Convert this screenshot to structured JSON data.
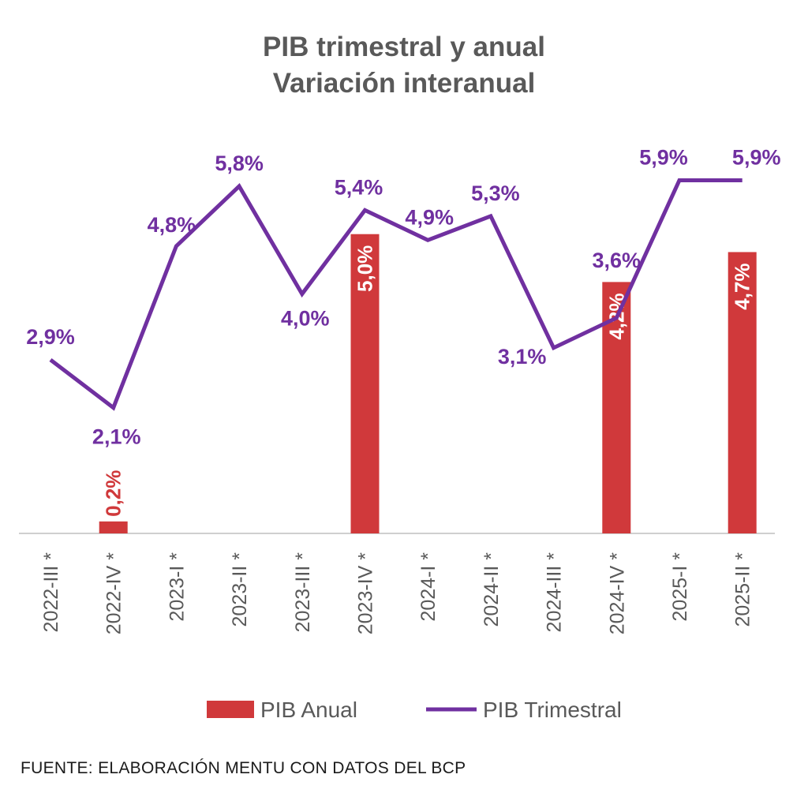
{
  "chart_data": {
    "type": "bar+line",
    "title": "PIB trimestral y anual",
    "subtitle": "Variación interanual",
    "categories": [
      "2022-III *",
      "2022-IV *",
      "2023-I *",
      "2023-II *",
      "2023-III *",
      "2023-IV *",
      "2024-I *",
      "2024-II *",
      "2024-III *",
      "2024-IV *",
      "2025-I *",
      "2025-II *"
    ],
    "series": [
      {
        "name": "PIB Anual",
        "type": "bar",
        "color": "#D0393B",
        "values": [
          null,
          0.2,
          null,
          null,
          null,
          5.0,
          null,
          null,
          null,
          4.2,
          null,
          4.7
        ],
        "labels": [
          "",
          "0,2%",
          "",
          "",
          "",
          "5,0%",
          "",
          "",
          "",
          "4,2%",
          "",
          "4,7%"
        ]
      },
      {
        "name": "PIB Trimestral",
        "type": "line",
        "color": "#7030A0",
        "values": [
          2.9,
          2.1,
          4.8,
          5.8,
          4.0,
          5.4,
          4.9,
          5.3,
          3.1,
          3.6,
          5.9,
          5.9
        ],
        "labels": [
          "2,9%",
          "2,1%",
          "4,8%",
          "5,8%",
          "4,0%",
          "5,4%",
          "4,9%",
          "5,3%",
          "3,1%",
          "3,6%",
          "5,9%",
          "5,9%"
        ]
      }
    ],
    "xlabel": "",
    "ylabel": "",
    "ylim": [
      0,
      7
    ],
    "grid": false,
    "y_axis_visible": false,
    "legend": "bottom"
  },
  "source": "FUENTE: ELABORACIÓN MENTU CON DATOS DEL BCP"
}
